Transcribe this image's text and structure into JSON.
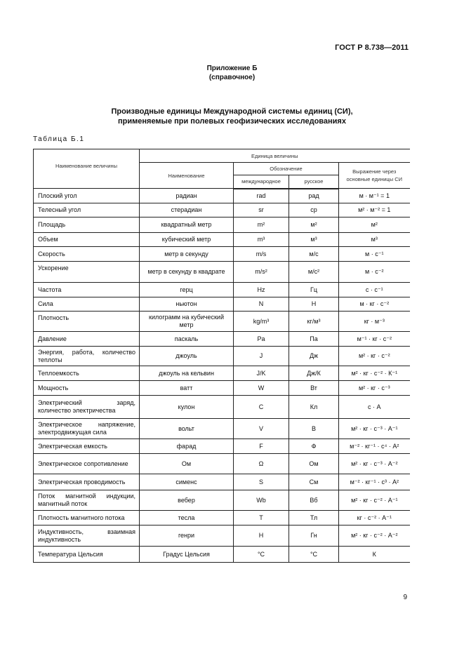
{
  "header": {
    "doc_code": "ГОСТ Р 8.738—2011"
  },
  "appendix": {
    "title": "Приложение Б",
    "subtitle": "(справочное)"
  },
  "title": {
    "line1": "Производные единицы Международной системы единиц (СИ),",
    "line2": "применяемые при полевых геофизических исследованиях"
  },
  "table_label": "Таблица Б.1",
  "table": {
    "headers": {
      "quantity": "Наименование величины",
      "unit": "Единица величины",
      "name": "Наименование",
      "designation": "Обозначение",
      "international": "международное",
      "russian": "русское",
      "expression": "Выражение через основные единицы СИ"
    },
    "rows": [
      {
        "quantity": "Плоский угол",
        "name": "радиан",
        "intl": "rad",
        "rus": "рад",
        "expr": "м · м⁻¹ = 1"
      },
      {
        "quantity": "Телесный угол",
        "name": "стерадиан",
        "intl": "sr",
        "rus": "ср",
        "expr": "м² · м⁻² = 1"
      },
      {
        "quantity": "Площадь",
        "name": "квадратный метр",
        "intl": "m²",
        "rus": "м²",
        "expr": "м²"
      },
      {
        "quantity": "Объем",
        "name": "кубический метр",
        "intl": "m³",
        "rus": "м³",
        "expr": "м³"
      },
      {
        "quantity": "Скорость",
        "name": "метр в секунду",
        "intl": "m/s",
        "rus": "м/с",
        "expr": "м · с⁻¹"
      },
      {
        "quantity": "Ускорение",
        "name": "метр в секунду в квадрате",
        "intl": "m/s²",
        "rus": "м/с²",
        "expr": "м · с⁻²"
      },
      {
        "quantity": "Частота",
        "name": "герц",
        "intl": "Hz",
        "rus": "Гц",
        "expr": "с · с⁻¹"
      },
      {
        "quantity": "Сила",
        "name": "ньютон",
        "intl": "N",
        "rus": "Н",
        "expr": "м · кг · с⁻²"
      },
      {
        "quantity": "Плотность",
        "name": "килограмм на кубический метр",
        "intl": "kg/m³",
        "rus": "кг/м³",
        "expr": "кг · м⁻³"
      },
      {
        "quantity": "Давление",
        "name": "паскаль",
        "intl": "Pa",
        "rus": "Па",
        "expr": "м⁻¹ · кг · с⁻²"
      },
      {
        "quantity": "Энергия, работа, количество теплоты",
        "name": "джоуль",
        "intl": "J",
        "rus": "Дж",
        "expr": "м² · кг · с⁻²"
      },
      {
        "quantity": "Теплоемкость",
        "name": "джоуль на кельвин",
        "intl": "J/K",
        "rus": "Дж/К",
        "expr": "м² · кг · с⁻² · К⁻¹"
      },
      {
        "quantity": "Мощность",
        "name": "ватт",
        "intl": "W",
        "rus": "Вт",
        "expr": "м² · кг · с⁻³"
      },
      {
        "quantity": "Электрический заряд, количество электричества",
        "name": "кулон",
        "intl": "C",
        "rus": "Кл",
        "expr": "с · А"
      },
      {
        "quantity": "Электрическое напряжение, электродвижущая сила",
        "name": "вольт",
        "intl": "V",
        "rus": "В",
        "expr": "м² · кг · с⁻³ · А⁻¹"
      },
      {
        "quantity": "Электрическая емкость",
        "name": "фарад",
        "intl": "F",
        "rus": "Ф",
        "expr": "м⁻² · кг⁻¹ · с⁴ · А²"
      },
      {
        "quantity": "Электрическое сопротивление",
        "name": "Ом",
        "intl": "Ω",
        "rus": "Ом",
        "expr": "м² · кг · с⁻³ · А⁻²"
      },
      {
        "quantity": "Электрическая проводимость",
        "name": "сименс",
        "intl": "S",
        "rus": "См",
        "expr": "м⁻² · кг⁻¹ · с³ · А²"
      },
      {
        "quantity": "Поток магнитной индукции, магнитный поток",
        "name": "вебер",
        "intl": "Wb",
        "rus": "Вб",
        "expr": "м² · кг · с⁻² · А⁻¹"
      },
      {
        "quantity": "Плотность магнитного потока",
        "name": "тесла",
        "intl": "T",
        "rus": "Тл",
        "expr": "кг · с⁻² · А⁻¹"
      },
      {
        "quantity": "Индуктивность, взаимная индуктивность",
        "name": "генри",
        "intl": "H",
        "rus": "Гн",
        "expr": "м² · кг · с⁻² · А⁻²"
      },
      {
        "quantity": "Температура Цельсия",
        "name": "Градус Цельсия",
        "intl": "°C",
        "rus": "°C",
        "expr": "К"
      }
    ]
  },
  "footer": {
    "page_number": "9"
  }
}
